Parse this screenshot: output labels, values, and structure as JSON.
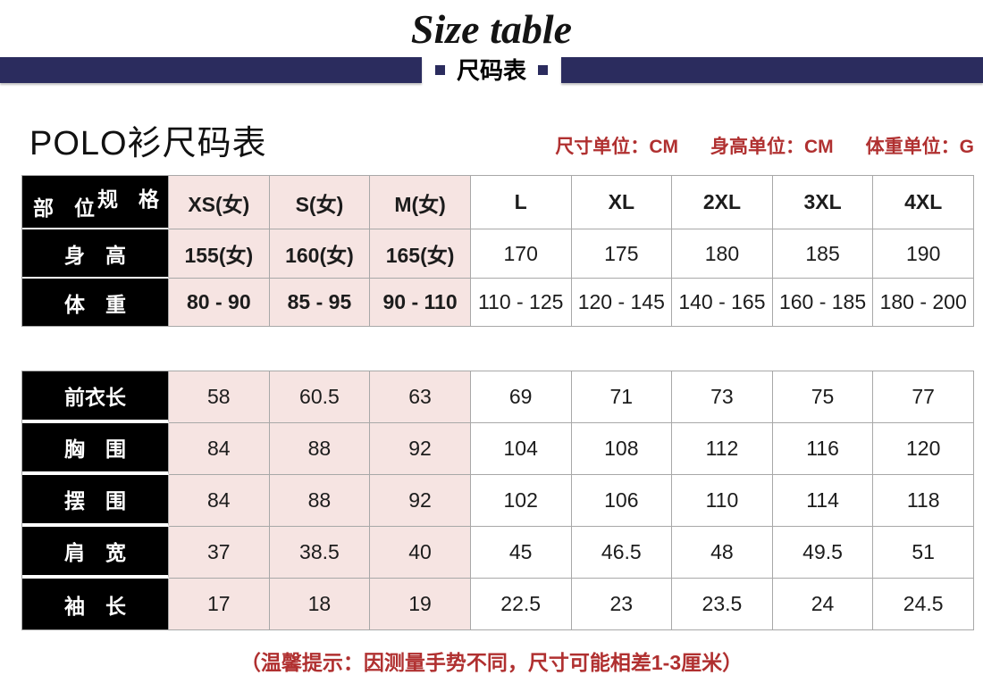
{
  "header": {
    "title_en": "Size table",
    "banner_label": "尺码表"
  },
  "intro": {
    "title": "POLO衫尺码表",
    "units": [
      {
        "label": "尺寸单位：",
        "value": "CM"
      },
      {
        "label": "身高单位：",
        "value": "CM"
      },
      {
        "label": "体重单位：",
        "value": "G"
      }
    ]
  },
  "size_table": {
    "corner": {
      "top_right": "规　格",
      "bottom_left": "部　位"
    },
    "columns": [
      "XS(女)",
      "S(女)",
      "M(女)",
      "L",
      "XL",
      "2XL",
      "3XL",
      "4XL"
    ],
    "highlight_column_count": 3,
    "rows": [
      {
        "label": "身　高",
        "values": [
          "155(女)",
          "160(女)",
          "165(女)",
          "170",
          "175",
          "180",
          "185",
          "190"
        ]
      },
      {
        "label": "体　重",
        "values": [
          "80 - 90",
          "85 - 95",
          "90 - 110",
          "110 - 125",
          "120 - 145",
          "140 - 165",
          "160 - 185",
          "180 - 200"
        ]
      }
    ]
  },
  "measure_table": {
    "highlight_column_count": 3,
    "rows": [
      {
        "label": "前衣长",
        "values": [
          "58",
          "60.5",
          "63",
          "69",
          "71",
          "73",
          "75",
          "77"
        ]
      },
      {
        "label": "胸　围",
        "values": [
          "84",
          "88",
          "92",
          "104",
          "108",
          "112",
          "116",
          "120"
        ]
      },
      {
        "label": "摆　围",
        "values": [
          "84",
          "88",
          "92",
          "102",
          "106",
          "110",
          "114",
          "118"
        ]
      },
      {
        "label": "肩　宽",
        "values": [
          "37",
          "38.5",
          "40",
          "45",
          "46.5",
          "48",
          "49.5",
          "51"
        ]
      },
      {
        "label": "袖　长",
        "values": [
          "17",
          "18",
          "19",
          "22.5",
          "23",
          "23.5",
          "24",
          "24.5"
        ]
      }
    ]
  },
  "footer": {
    "note": "（温馨提示：因测量手势不同，尺寸可能相差1-3厘米）"
  },
  "colors": {
    "navy": "#2b2c5e",
    "pink": "#f6e4e2",
    "red": "#b03030",
    "border_gray": "#a8a8a8",
    "label_black": "#000000"
  }
}
